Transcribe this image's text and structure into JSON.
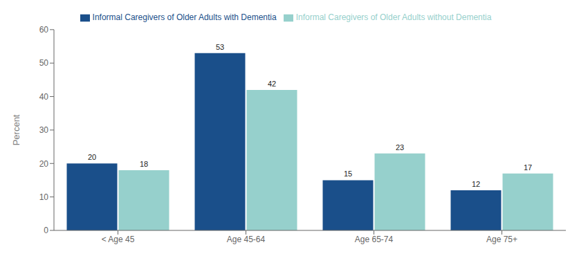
{
  "chart_data": {
    "type": "bar",
    "categories": [
      "< Age 45",
      "Age 45-64",
      "Age 65-74",
      "Age 75+"
    ],
    "series": [
      {
        "name": "Informal Caregivers of Older Adults with Dementia",
        "color": "#1a4f8a",
        "values": [
          20,
          53,
          15,
          12
        ]
      },
      {
        "name": "Informal Caregivers of Older Adults without Dementia",
        "color": "#96d0cc",
        "values": [
          18,
          42,
          23,
          17
        ]
      }
    ],
    "ylabel": "Percent",
    "ylim": [
      0,
      60
    ],
    "yticks": [
      0,
      10,
      20,
      30,
      40,
      50,
      60
    ],
    "grid": false,
    "legend": "top",
    "data_labels": true
  }
}
